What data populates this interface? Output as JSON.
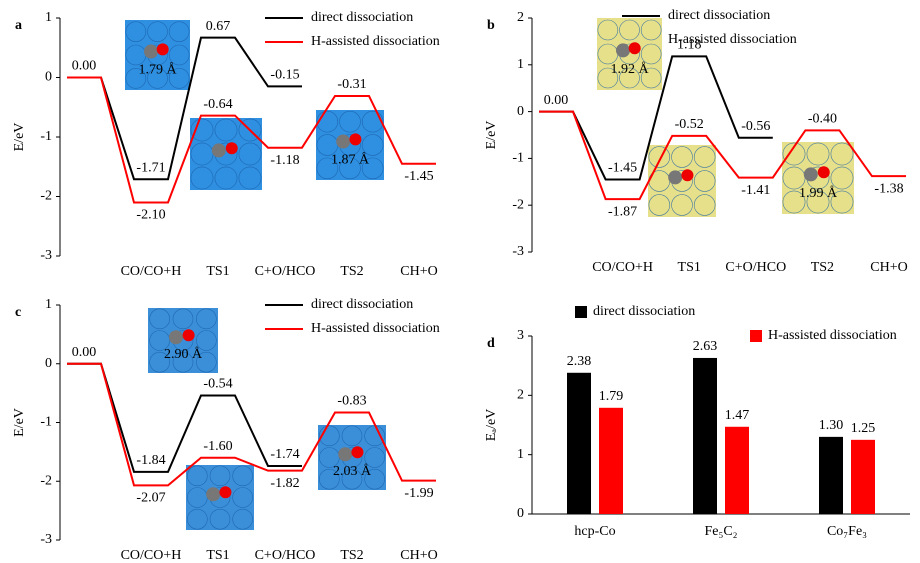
{
  "chart_data": [
    {
      "type": "profile",
      "panel": "a",
      "ylabel": "E/eV",
      "ylim": [
        -3,
        1
      ],
      "yticks": [
        -3,
        -2,
        -1,
        0,
        1
      ],
      "categories": [
        null,
        "CO/CO+H",
        "TS1",
        "C+O/HCO",
        "TS2",
        "CH+O"
      ],
      "series": [
        {
          "name": "direct dissociation",
          "color": "#000000",
          "values": [
            0,
            -1.71,
            0.67,
            -0.15,
            null,
            null
          ],
          "value_labels": [
            "0.00",
            "-1.71",
            "0.67",
            "-0.15",
            null,
            null
          ]
        },
        {
          "name": "H-assisted dissociation",
          "color": "#ff0000",
          "values": [
            0,
            -2.1,
            -0.64,
            -1.18,
            -0.31,
            -1.45
          ],
          "value_labels": [
            null,
            "-2.10",
            "-0.64",
            "-1.18",
            "-0.31",
            "-1.45"
          ]
        }
      ],
      "annotations": [
        "1.79 Å",
        "1.87 Å"
      ]
    },
    {
      "type": "profile",
      "panel": "b",
      "ylabel": "E/eV",
      "ylim": [
        -3,
        2
      ],
      "yticks": [
        -3,
        -2,
        -1,
        0,
        1,
        2
      ],
      "categories": [
        null,
        "CO/CO+H",
        "TS1",
        "C+O/HCO",
        "TS2",
        "CH+O"
      ],
      "series": [
        {
          "name": "direct dissociation",
          "color": "#000000",
          "values": [
            0,
            -1.45,
            1.18,
            -0.56,
            null,
            null
          ],
          "value_labels": [
            "0.00",
            "-1.45",
            "1.18",
            "-0.56",
            null,
            null
          ]
        },
        {
          "name": "H-assisted dissociation",
          "color": "#ff0000",
          "values": [
            0,
            -1.87,
            -0.52,
            -1.41,
            -0.4,
            -1.38
          ],
          "value_labels": [
            null,
            "-1.87",
            "-0.52",
            "-1.41",
            "-0.40",
            "-1.38"
          ]
        }
      ],
      "annotations": [
        "1.92 Å",
        "1.99 Å"
      ]
    },
    {
      "type": "profile",
      "panel": "c",
      "ylabel": "E/eV",
      "ylim": [
        -3,
        1
      ],
      "yticks": [
        -3,
        -2,
        -1,
        0,
        1
      ],
      "categories": [
        null,
        "CO/CO+H",
        "TS1",
        "C+O/HCO",
        "TS2",
        "CH+O"
      ],
      "series": [
        {
          "name": "direct dissociation",
          "color": "#000000",
          "values": [
            0,
            -1.84,
            -0.54,
            -1.74,
            null,
            null
          ],
          "value_labels": [
            "0.00",
            "-1.84",
            "-0.54",
            "-1.74",
            null,
            null
          ]
        },
        {
          "name": "H-assisted dissociation",
          "color": "#ff0000",
          "values": [
            0,
            -2.07,
            -1.6,
            -1.82,
            -0.83,
            -1.99
          ],
          "value_labels": [
            null,
            "-2.07",
            "-1.60",
            "-1.82",
            "-0.83",
            "-1.99"
          ]
        }
      ],
      "annotations": [
        "2.90 Å",
        "2.03 Å"
      ]
    },
    {
      "type": "bar",
      "panel": "d",
      "ylabel": "Eₐ/eV",
      "ylim": [
        0,
        3
      ],
      "yticks": [
        0,
        1,
        2,
        3
      ],
      "categories": [
        "hcp-Co",
        "Fe₅C₂",
        "Co₇Fe₃"
      ],
      "series": [
        {
          "name": "direct dissociation",
          "color": "#000000",
          "values": [
            2.38,
            2.63,
            1.3
          ],
          "value_labels": [
            "2.38",
            "2.63",
            "1.30"
          ]
        },
        {
          "name": "H-assisted dissociation",
          "color": "#ff0000",
          "values": [
            1.79,
            1.47,
            1.25
          ],
          "value_labels": [
            "1.79",
            "1.47",
            "1.25"
          ]
        }
      ]
    }
  ]
}
